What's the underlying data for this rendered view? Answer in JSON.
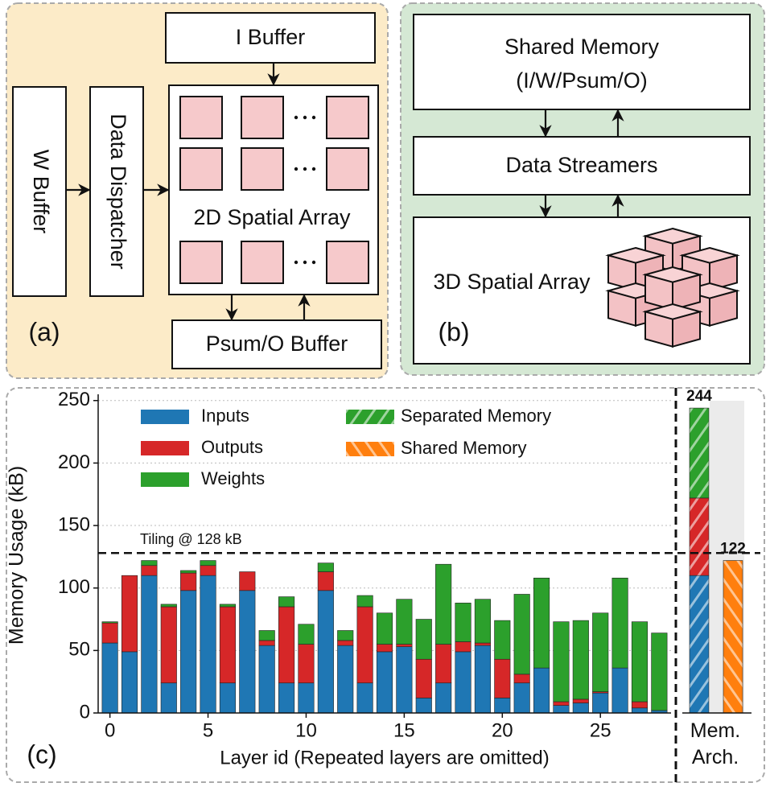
{
  "panel_a": {
    "label": "(a)",
    "w_buffer": "W Buffer",
    "data_dispatcher": "Data Dispatcher",
    "i_buffer": "I Buffer",
    "array": "2D Spatial Array",
    "psum_buffer": "Psum/O Buffer"
  },
  "panel_b": {
    "label": "(b)",
    "shared_memory": [
      "Shared Memory",
      "(I/W/Psum/O)"
    ],
    "data_streamers": "Data Streamers",
    "array": "3D Spatial Array"
  },
  "chart_data": {
    "type": "bar",
    "stacked": true,
    "panel_label": "(c)",
    "x_label": "Layer id (Repeated layers are omitted)",
    "y_label": "Memory Usage (kB)",
    "x": [
      0,
      1,
      2,
      3,
      4,
      5,
      6,
      7,
      8,
      9,
      10,
      11,
      12,
      13,
      14,
      15,
      16,
      17,
      18,
      19,
      20,
      21,
      22,
      23,
      24,
      25,
      26,
      27,
      28
    ],
    "series": [
      {
        "name": "Inputs",
        "color": "#1f77b4",
        "values": [
          56,
          49,
          110,
          24,
          98,
          110,
          24,
          98,
          54,
          24,
          24,
          98,
          54,
          24,
          49,
          53,
          12,
          24,
          49,
          54,
          12,
          24,
          36,
          6,
          8,
          16,
          36,
          4,
          2
        ]
      },
      {
        "name": "Outputs",
        "color": "#d62728",
        "values": [
          16,
          61,
          8,
          61,
          14,
          8,
          61,
          15,
          4,
          61,
          31,
          15,
          4,
          61,
          6,
          2,
          31,
          31,
          8,
          2,
          31,
          7,
          0,
          3,
          3,
          1,
          0,
          5,
          0
        ]
      },
      {
        "name": "Weights",
        "color": "#2ca02c",
        "values": [
          1,
          0,
          4,
          2,
          2,
          4,
          2,
          0,
          8,
          8,
          16,
          7,
          8,
          9,
          25,
          36,
          32,
          64,
          31,
          35,
          31,
          64,
          72,
          64,
          63,
          63,
          72,
          64,
          62
        ]
      }
    ],
    "hatched_legend": [
      {
        "name": "Separated Memory",
        "color": "#2ca02c"
      },
      {
        "name": "Shared Memory",
        "color": "#ff7f0e"
      }
    ],
    "threshold": {
      "value": 128,
      "label": "Tiling @ 128 kB"
    },
    "mem_arch": {
      "label": "Mem. Arch.",
      "separated_values": [
        110,
        62,
        72
      ],
      "separated_total": 244,
      "shared": 122
    },
    "xlim": [
      -0.6,
      28.6
    ],
    "xticks": [
      0,
      5,
      10,
      15,
      20,
      25
    ],
    "ylim": [
      0,
      255
    ],
    "yticks": [
      0,
      50,
      100,
      150,
      200,
      250
    ],
    "grid": true
  }
}
